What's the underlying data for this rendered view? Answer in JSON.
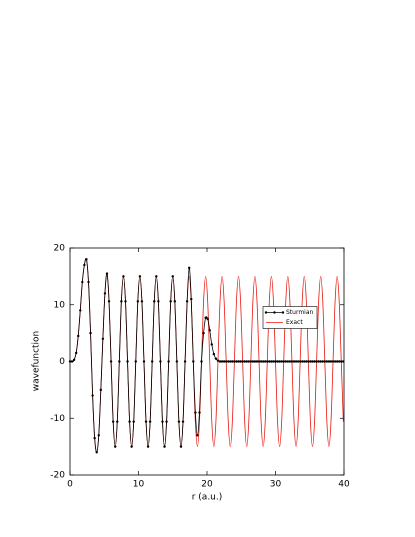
{
  "chart_data": {
    "type": "line",
    "xlabel": "r (a.u.)",
    "ylabel": "wavefunction",
    "xlim": [
      0,
      40
    ],
    "ylim": [
      -20,
      20
    ],
    "xticks": [
      0,
      10,
      20,
      30,
      40
    ],
    "yticks": [
      -20,
      -10,
      0,
      10,
      20
    ],
    "legend": "center right",
    "x": [
      0,
      0.3,
      0.6,
      0.9,
      1.2,
      1.5,
      1.8,
      2.1,
      2.4,
      2.7,
      3,
      3.3,
      3.6,
      3.9,
      4.2,
      4.5,
      4.8,
      5.1,
      5.4,
      5.7,
      6,
      6.3,
      6.6,
      6.9,
      7.2,
      7.5,
      7.8,
      8.1,
      8.4,
      8.7,
      9,
      9.3,
      9.6,
      9.9,
      10.2,
      10.5,
      10.8,
      11.1,
      11.4,
      11.7,
      12,
      12.3,
      12.6,
      12.9,
      13.2,
      13.5,
      13.8,
      14.1,
      14.4,
      14.7,
      15,
      15.3,
      15.6,
      15.9,
      16.2,
      16.5,
      16.8,
      17.1,
      17.4,
      17.7,
      18,
      18.3,
      18.6,
      18.9,
      19.2,
      19.5,
      19.8,
      20.1,
      20.4,
      20.7,
      21,
      21.3,
      21.6,
      21.9,
      22.2,
      22.5,
      22.8,
      23.1,
      23.4,
      23.7,
      24,
      24.3,
      24.6,
      24.9,
      25.2,
      25.5,
      25.8,
      26.1,
      26.4,
      26.7,
      27,
      27.3,
      27.6,
      27.9,
      28.2,
      28.5,
      28.8,
      29.1,
      29.4,
      29.7,
      30,
      30.3,
      30.6,
      30.9,
      31.2,
      31.5,
      31.8,
      32.1,
      32.4,
      32.7,
      33,
      33.3,
      33.6,
      33.9,
      34.2,
      34.5,
      34.8,
      35.1,
      35.4,
      35.7,
      36,
      36.3,
      36.6,
      36.9,
      37.2,
      37.5,
      37.8,
      38.1,
      38.4,
      38.7,
      39,
      39.3,
      39.6,
      39.9
    ],
    "series": [
      {
        "name": "Sturmian",
        "color": "#000000",
        "marker": true,
        "values": [
          0,
          0,
          0.3,
          1.5,
          4.5,
          9,
          14,
          17,
          18,
          14,
          5,
          -6,
          -13.5,
          -16,
          -13,
          -5,
          4,
          12,
          15.5,
          10.6,
          0,
          -10.6,
          -15,
          -10.6,
          0,
          10.6,
          15,
          10.6,
          0,
          -10.6,
          -15,
          -10.6,
          0,
          10.6,
          15,
          10.6,
          0,
          -10.6,
          -15,
          -10.6,
          0,
          10.6,
          15,
          10.6,
          0,
          -10.6,
          -15,
          -10.6,
          0,
          10.6,
          15,
          10.6,
          0,
          -10.6,
          -15,
          -10.6,
          0,
          10.6,
          16.5,
          11,
          0,
          -9,
          -13,
          -9,
          0,
          5,
          7.7,
          7.5,
          5.5,
          3,
          1.3,
          0.5,
          0.15,
          0,
          0,
          0,
          0,
          0,
          0,
          0,
          0,
          0,
          0,
          0,
          0,
          0,
          0,
          0,
          0,
          0,
          0,
          0,
          0,
          0,
          0,
          0,
          0,
          0,
          0,
          0,
          0,
          0,
          0,
          0,
          0,
          0,
          0,
          0,
          0,
          0,
          0,
          0,
          0,
          0,
          0,
          0,
          0,
          0,
          0,
          0,
          0,
          0,
          0,
          0,
          0,
          0,
          0,
          0,
          0,
          0,
          0,
          0,
          0,
          0
        ]
      },
      {
        "name": "Exact",
        "color": "#e8150d",
        "marker": false,
        "values": [
          0,
          0,
          0.3,
          1.5,
          4.5,
          9,
          14,
          17,
          18,
          14,
          5,
          -6,
          -13.5,
          -16,
          -13,
          -5,
          4,
          12,
          15.5,
          10.6,
          0,
          -10.6,
          -15,
          -10.6,
          0,
          10.6,
          15,
          10.6,
          0,
          -10.6,
          -15,
          -10.6,
          0,
          10.6,
          15,
          10.6,
          0,
          -10.6,
          -15,
          -10.6,
          0,
          10.6,
          15,
          10.6,
          0,
          -10.6,
          -15,
          -10.6,
          0,
          10.6,
          15,
          10.6,
          0,
          -10.6,
          -15,
          -10.6,
          0,
          10.6,
          15,
          10.6,
          0,
          -10.6,
          -15,
          -10.6,
          0,
          10.6,
          15,
          10.6,
          0,
          -10.6,
          -15,
          -10.6,
          0,
          10.6,
          15,
          10.6,
          0,
          -10.6,
          -15,
          -10.6,
          0,
          10.6,
          15,
          10.6,
          0,
          -10.6,
          -15,
          -10.6,
          0,
          10.6,
          15,
          10.6,
          0,
          -10.6,
          -15,
          -10.6,
          0,
          10.6,
          15,
          10.6,
          0,
          -10.6,
          -15,
          -10.6,
          0,
          10.6,
          15,
          10.6,
          0,
          -10.6,
          -15,
          -10.6,
          0,
          10.6,
          15,
          10.6,
          0,
          -10.6,
          -15,
          -10.6,
          0,
          10.6,
          15,
          10.6,
          0,
          -10.6,
          -15,
          -10.6,
          0,
          10.6,
          15,
          10.6,
          0,
          -10.6
        ]
      }
    ]
  }
}
